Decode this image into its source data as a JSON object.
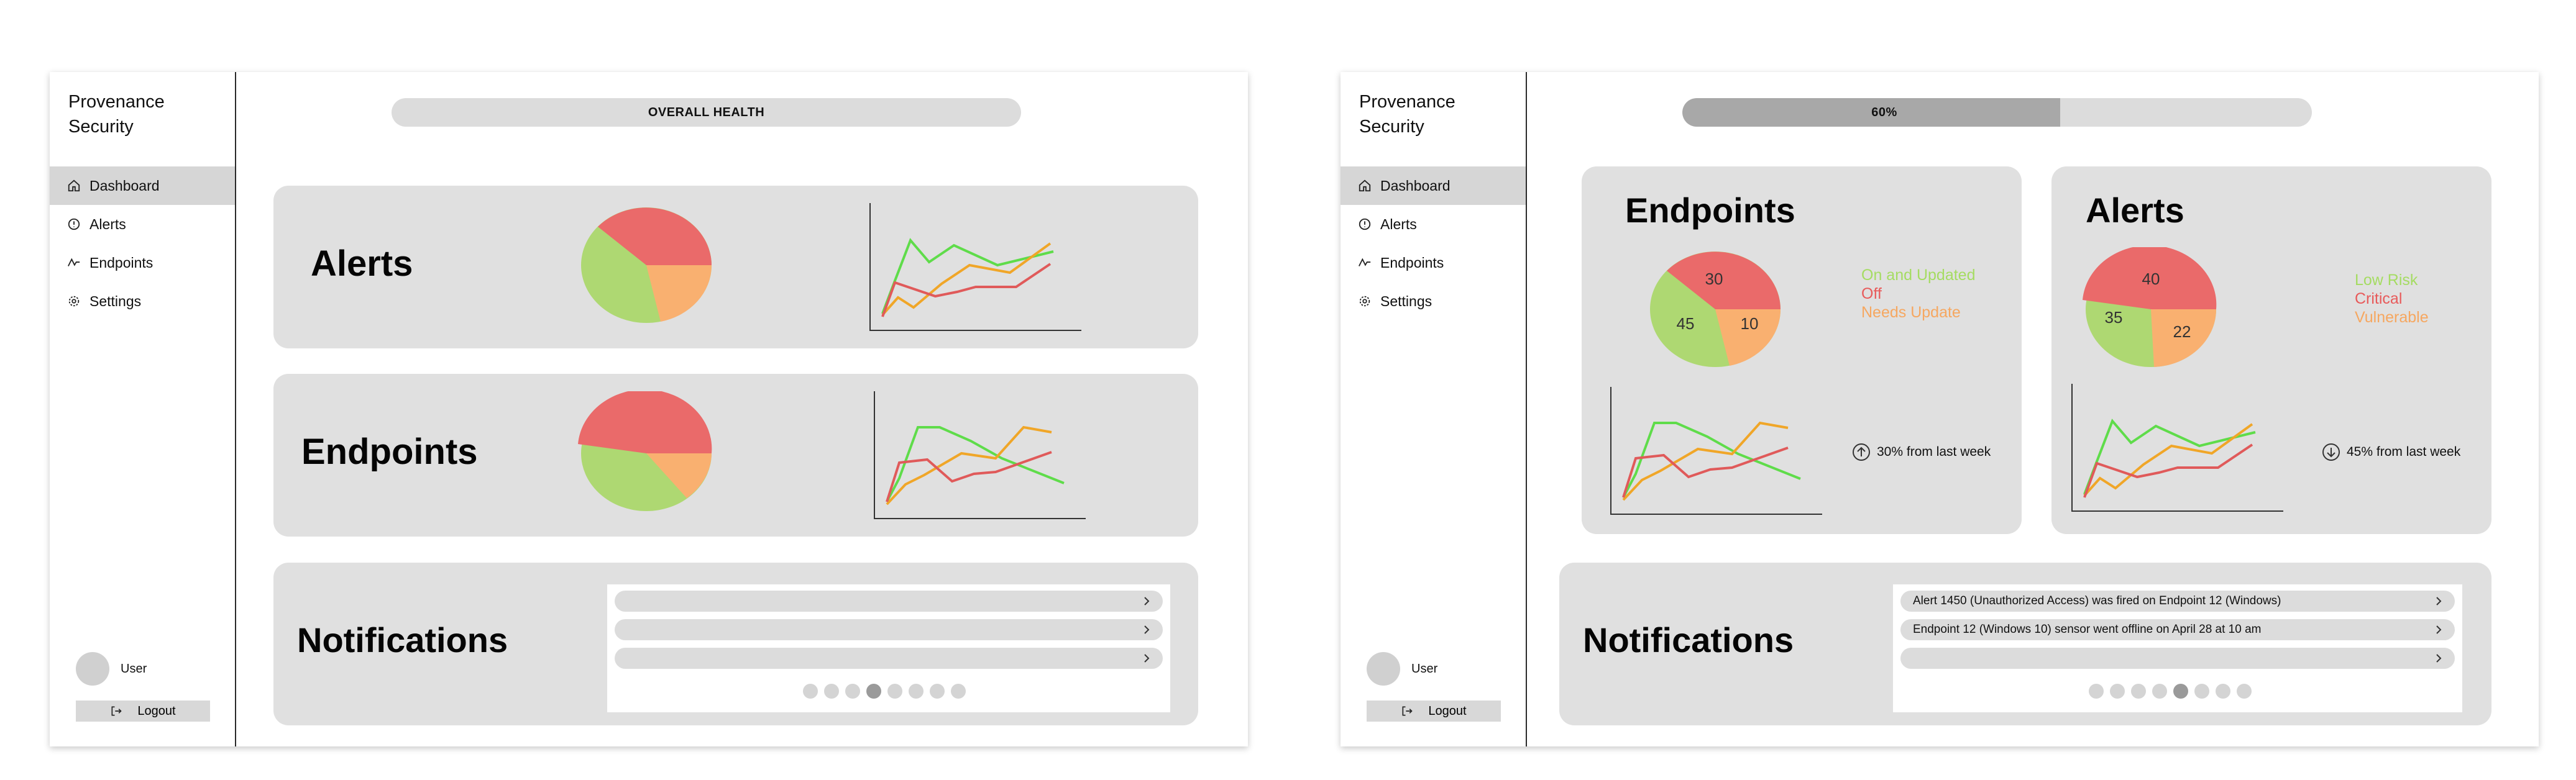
{
  "colors": {
    "red": "#ea6a6a",
    "green": "#aed872",
    "orange": "#f9b070",
    "line_green": "#5fdc4a",
    "line_orange": "#f0a628",
    "line_red": "#e05a5a"
  },
  "left": {
    "brand": "Provenance Security",
    "nav": [
      {
        "label": "Dashboard",
        "icon": "home-icon",
        "active": true
      },
      {
        "label": "Alerts",
        "icon": "alert-circle-icon"
      },
      {
        "label": "Endpoints",
        "icon": "activity-icon"
      },
      {
        "label": "Settings",
        "icon": "gear-icon"
      }
    ],
    "user": "User",
    "logout": "Logout",
    "health_label": "OVERALL HEALTH",
    "alerts_title": "Alerts",
    "endpoints_title": "Endpoints",
    "notifications_title": "Notifications",
    "notification_rows": [
      "",
      "",
      ""
    ],
    "pagination": {
      "pages": 8,
      "current": 4
    }
  },
  "right": {
    "brand": "Provenance Security",
    "nav": [
      {
        "label": "Dashboard",
        "icon": "home-icon",
        "active": true
      },
      {
        "label": "Alerts",
        "icon": "alert-circle-icon"
      },
      {
        "label": "Endpoints",
        "icon": "activity-icon"
      },
      {
        "label": "Settings",
        "icon": "gear-icon"
      }
    ],
    "user": "User",
    "logout": "Logout",
    "health_percent": 60,
    "health_label": "60%",
    "endpoints": {
      "title": "Endpoints",
      "pie": {
        "red": "30",
        "green": "45",
        "orange": "10"
      },
      "legend": [
        "On and Updated",
        "Off",
        "Needs Update"
      ],
      "trend": "30% from last week",
      "trend_direction": "up"
    },
    "alerts": {
      "title": "Alerts",
      "pie": {
        "red": "40",
        "green": "35",
        "orange": "22"
      },
      "legend": [
        "Low Risk",
        "Critical",
        "Vulnerable"
      ],
      "trend": "45% from last week",
      "trend_direction": "down"
    },
    "notifications_title": "Notifications",
    "notification_rows": [
      "Alert 1450 (Unauthorized Access) was fired on Endpoint 12 (Windows)",
      "Endpoint 12 (Windows 10) sensor went offline on April 28 at 10 am",
      ""
    ],
    "pagination": {
      "pages": 8,
      "current": 5
    }
  }
}
